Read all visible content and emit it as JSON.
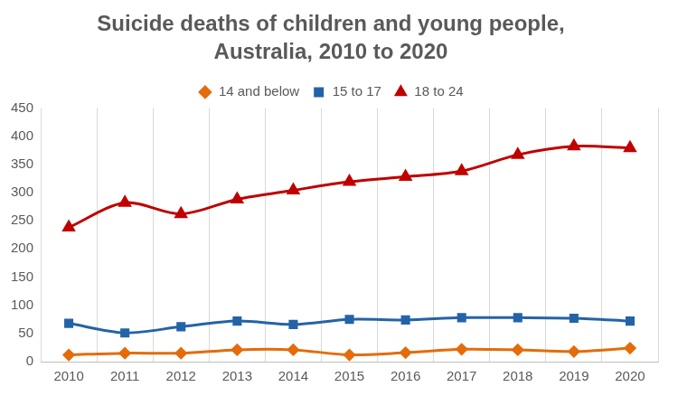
{
  "chart_data": {
    "type": "line",
    "title": "Suicide deaths of children and young people, Australia, 2010 to 2020",
    "categories": [
      "2010",
      "2011",
      "2012",
      "2013",
      "2014",
      "2015",
      "2016",
      "2017",
      "2018",
      "2019",
      "2020"
    ],
    "series": [
      {
        "name": "14 and below",
        "color": "#e46c0a",
        "marker": "diamond",
        "values": [
          12,
          15,
          15,
          21,
          21,
          12,
          16,
          22,
          21,
          18,
          24
        ]
      },
      {
        "name": "15 to 17",
        "color": "#2463a8",
        "marker": "square",
        "values": [
          68,
          51,
          62,
          72,
          66,
          75,
          74,
          78,
          78,
          77,
          72
        ]
      },
      {
        "name": "18 to 24",
        "color": "#c00000",
        "marker": "triangle",
        "values": [
          238,
          282,
          262,
          288,
          304,
          319,
          328,
          338,
          367,
          382,
          379
        ]
      }
    ],
    "ylim": [
      0,
      450
    ],
    "yticks": [
      0,
      50,
      100,
      150,
      200,
      250,
      300,
      350,
      400,
      450
    ],
    "grid": "x",
    "legend": "top"
  }
}
